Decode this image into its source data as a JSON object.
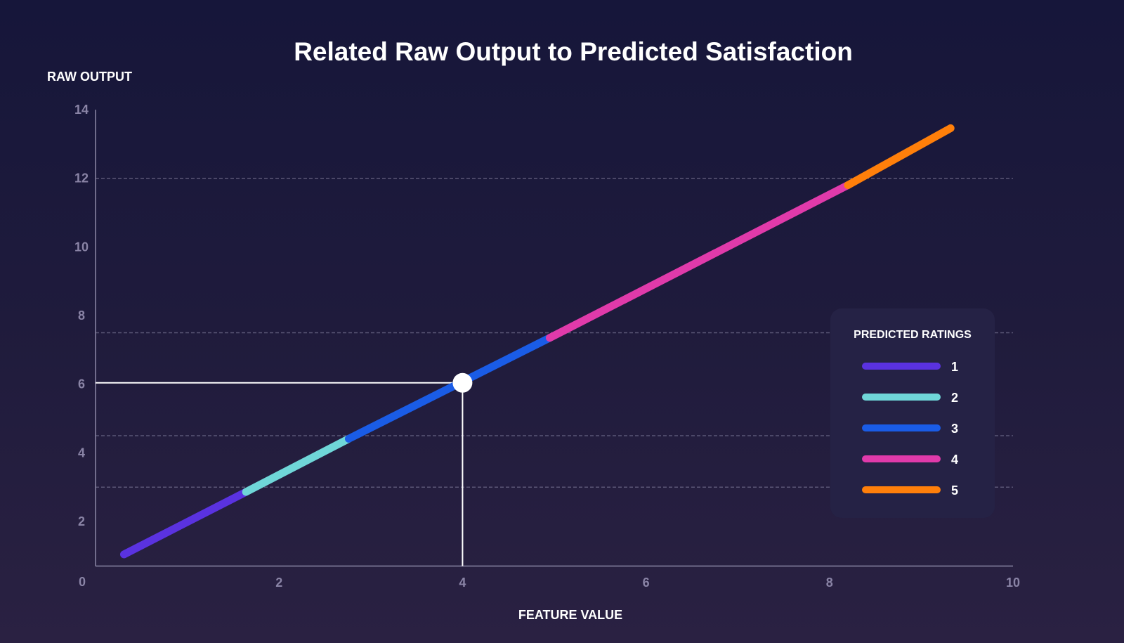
{
  "chart_data": {
    "type": "line",
    "title": "Related Raw Output to Predicted Satisfaction",
    "xlabel": "FEATURE VALUE",
    "ylabel": "RAW OUTPUT",
    "xlim": [
      0,
      10
    ],
    "ylim": [
      0.7,
      14
    ],
    "origin_label": "0",
    "xticks": [
      2,
      4,
      6,
      8,
      10
    ],
    "yticks": [
      2,
      4,
      6,
      8,
      10,
      12,
      14
    ],
    "threshold_lines": [
      3,
      4.5,
      7.5,
      12
    ],
    "line": {
      "x": [
        0.31,
        9.32
      ],
      "y": [
        1.04,
        13.46
      ]
    },
    "segments": [
      {
        "rating": "1",
        "x": [
          0.31,
          1.64
        ],
        "y": [
          1.04,
          2.86
        ],
        "color": "#5a32e0"
      },
      {
        "rating": "2",
        "x": [
          1.64,
          2.76
        ],
        "y": [
          2.86,
          4.41
        ],
        "color": "#6fd6d8"
      },
      {
        "rating": "3",
        "x": [
          2.76,
          4.95
        ],
        "y": [
          4.41,
          7.35
        ],
        "color": "#1a5ce6"
      },
      {
        "rating": "4",
        "x": [
          4.95,
          8.2
        ],
        "y": [
          7.35,
          11.8
        ],
        "color": "#e03aaa"
      },
      {
        "rating": "5",
        "x": [
          8.2,
          9.32
        ],
        "y": [
          11.8,
          13.46
        ],
        "color": "#ff7f0a"
      }
    ],
    "highlight_point": {
      "x": 4,
      "y": 6.04
    },
    "legend": {
      "title": "PREDICTED RATINGS",
      "placement": "right",
      "entries": [
        {
          "label": "1",
          "color": "#5a32e0"
        },
        {
          "label": "2",
          "color": "#6fd6d8"
        },
        {
          "label": "3",
          "color": "#1a5ce6"
        },
        {
          "label": "4",
          "color": "#e03aaa"
        },
        {
          "label": "5",
          "color": "#ff7f0a"
        }
      ]
    }
  }
}
